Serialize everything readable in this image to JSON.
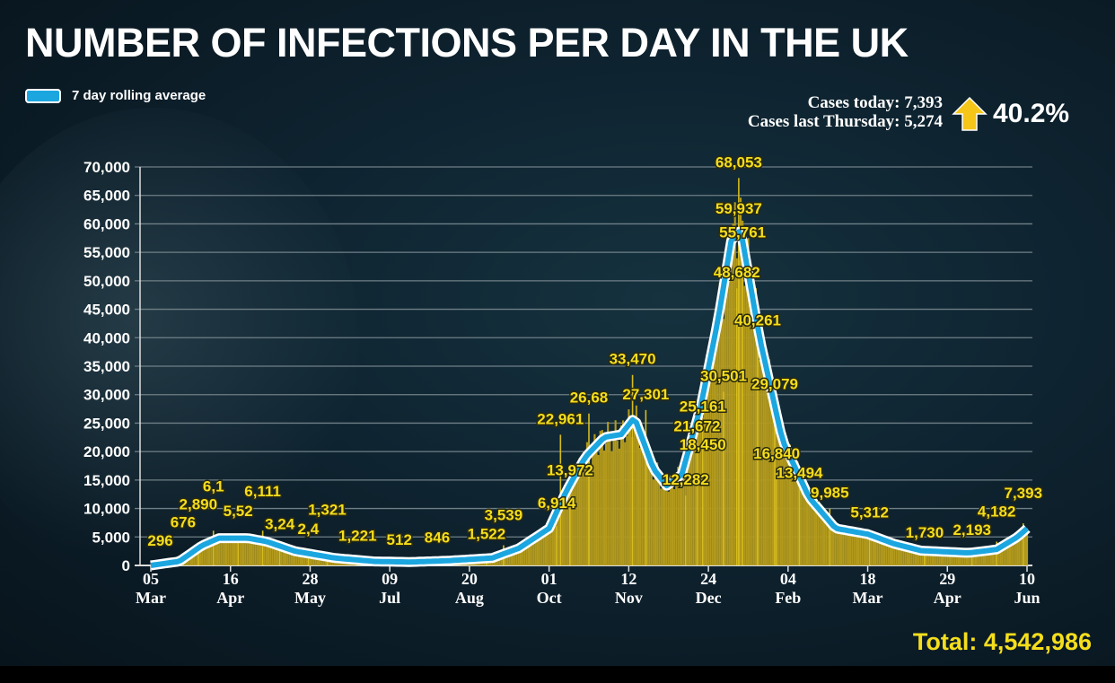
{
  "title": "NUMBER OF INFECTIONS PER DAY IN THE UK",
  "legend": {
    "label": "7 day rolling average",
    "color": "#1ba6e0"
  },
  "stats": {
    "cases_today": "Cases today: 7,393",
    "cases_last_thursday": "Cases last  Thursday: 5,274",
    "change": "40.2%",
    "change_icon": "up-arrow-icon",
    "arrow_color": "#f5c518"
  },
  "total": "Total: 4,542,986",
  "chart_data": {
    "type": "bar",
    "title": "NUMBER OF INFECTIONS PER DAY IN THE UK",
    "xlabel": "",
    "ylabel": "",
    "ylim": [
      0,
      70000
    ],
    "xlim": [
      "2020-03-05",
      "2021-06-10"
    ],
    "grid": true,
    "legend_position": "top-left",
    "colors": {
      "bars": "#b39a1c",
      "line": "#1ba6e0",
      "labels": "#f5de1c"
    },
    "y_ticks": [
      "0",
      "5,000",
      "10,000",
      "15,000",
      "20,000",
      "25,000",
      "30,000",
      "35,000",
      "40,000",
      "45,000",
      "50,000",
      "55,000",
      "60,000",
      "65,000",
      "70,000"
    ],
    "x_ticks": [
      {
        "date": "2020-03-05",
        "day": "05",
        "month": "Mar"
      },
      {
        "date": "2020-04-16",
        "day": "16",
        "month": "Apr"
      },
      {
        "date": "2020-05-28",
        "day": "28",
        "month": "May"
      },
      {
        "date": "2020-07-09",
        "day": "09",
        "month": "Jul"
      },
      {
        "date": "2020-08-20",
        "day": "20",
        "month": "Aug"
      },
      {
        "date": "2020-10-01",
        "day": "01",
        "month": "Oct"
      },
      {
        "date": "2020-11-12",
        "day": "12",
        "month": "Nov"
      },
      {
        "date": "2020-12-24",
        "day": "24",
        "month": "Dec"
      },
      {
        "date": "2021-02-04",
        "day": "04",
        "month": "Feb"
      },
      {
        "date": "2021-03-18",
        "day": "18",
        "month": "Mar"
      },
      {
        "date": "2021-04-29",
        "day": "29",
        "month": "Apr"
      },
      {
        "date": "2021-06-10",
        "day": "10",
        "month": "Jun"
      }
    ],
    "series": [
      {
        "name": "7 day rolling average",
        "type": "line",
        "points": [
          [
            "2020-03-05",
            0
          ],
          [
            "2020-03-20",
            700
          ],
          [
            "2020-04-01",
            3500
          ],
          [
            "2020-04-10",
            4800
          ],
          [
            "2020-04-25",
            4800
          ],
          [
            "2020-05-05",
            4200
          ],
          [
            "2020-05-20",
            2500
          ],
          [
            "2020-06-10",
            1300
          ],
          [
            "2020-07-01",
            700
          ],
          [
            "2020-07-20",
            600
          ],
          [
            "2020-08-10",
            850
          ],
          [
            "2020-09-01",
            1300
          ],
          [
            "2020-09-15",
            3000
          ],
          [
            "2020-10-01",
            6500
          ],
          [
            "2020-10-10",
            13000
          ],
          [
            "2020-10-20",
            19000
          ],
          [
            "2020-10-30",
            22500
          ],
          [
            "2020-11-08",
            23000
          ],
          [
            "2020-11-15",
            26000
          ],
          [
            "2020-11-25",
            17000
          ],
          [
            "2020-12-02",
            14000
          ],
          [
            "2020-12-10",
            16000
          ],
          [
            "2020-12-20",
            28000
          ],
          [
            "2020-12-29",
            43000
          ],
          [
            "2021-01-05",
            57000
          ],
          [
            "2021-01-10",
            59000
          ],
          [
            "2021-01-20",
            40000
          ],
          [
            "2021-02-01",
            22000
          ],
          [
            "2021-02-15",
            12000
          ],
          [
            "2021-03-01",
            6500
          ],
          [
            "2021-03-18",
            5500
          ],
          [
            "2021-04-01",
            3800
          ],
          [
            "2021-04-15",
            2600
          ],
          [
            "2021-05-10",
            2200
          ],
          [
            "2021-05-25",
            2800
          ],
          [
            "2021-06-05",
            5000
          ],
          [
            "2021-06-10",
            6500
          ]
        ]
      }
    ],
    "annotations": [
      {
        "date": "2020-03-10",
        "label": "296",
        "value": 296
      },
      {
        "date": "2020-03-22",
        "label": "676",
        "value": 676
      },
      {
        "date": "2020-03-30",
        "label": "2,890",
        "value": 2890
      },
      {
        "date": "2020-04-07",
        "label": "6,1",
        "value": 6100
      },
      {
        "date": "2020-04-20",
        "label": "5,52",
        "value": 5526
      },
      {
        "date": "2020-05-03",
        "label": "6,111",
        "value": 6111
      },
      {
        "date": "2020-05-12",
        "label": "3,24",
        "value": 3242
      },
      {
        "date": "2020-05-27",
        "label": "2,4",
        "value": 2400
      },
      {
        "date": "2020-06-06",
        "label": "1,321",
        "value": 1321
      },
      {
        "date": "2020-06-22",
        "label": "1,221",
        "value": 1221
      },
      {
        "date": "2020-07-14",
        "label": "512",
        "value": 512
      },
      {
        "date": "2020-08-03",
        "label": "846",
        "value": 846
      },
      {
        "date": "2020-08-29",
        "label": "1,522",
        "value": 1522
      },
      {
        "date": "2020-09-07",
        "label": "3,539",
        "value": 3539
      },
      {
        "date": "2020-10-05",
        "label": "6,914",
        "value": 6914
      },
      {
        "date": "2020-10-12",
        "label": "13,972",
        "value": 13972
      },
      {
        "date": "2020-10-07",
        "label": "22,961",
        "value": 22961
      },
      {
        "date": "2020-10-22",
        "label": "26,68",
        "value": 26688
      },
      {
        "date": "2020-11-14",
        "label": "33,470",
        "value": 33470
      },
      {
        "date": "2020-11-21",
        "label": "27,301",
        "value": 27301
      },
      {
        "date": "2020-12-12",
        "label": "12,282",
        "value": 12282
      },
      {
        "date": "2020-12-21",
        "label": "18,450",
        "value": 18450
      },
      {
        "date": "2020-12-18",
        "label": "21,672",
        "value": 21672
      },
      {
        "date": "2020-12-21",
        "label": "25,161",
        "value": 25161
      },
      {
        "date": "2021-01-01",
        "label": "30,501",
        "value": 30501
      },
      {
        "date": "2021-01-09",
        "label": "68,053",
        "value": 68053
      },
      {
        "date": "2021-01-09",
        "label": "59,937",
        "value": 59937
      },
      {
        "date": "2021-01-11",
        "label": "55,761",
        "value": 55761
      },
      {
        "date": "2021-01-08",
        "label": "48,682",
        "value": 48682
      },
      {
        "date": "2021-01-19",
        "label": "40,261",
        "value": 40261
      },
      {
        "date": "2021-01-28",
        "label": "29,079",
        "value": 29079
      },
      {
        "date": "2021-01-29",
        "label": "16,840",
        "value": 16840
      },
      {
        "date": "2021-02-10",
        "label": "13,494",
        "value": 13494
      },
      {
        "date": "2021-02-26",
        "label": "9,985",
        "value": 9985
      },
      {
        "date": "2021-03-19",
        "label": "5,312",
        "value": 5312
      },
      {
        "date": "2021-04-17",
        "label": "1,730",
        "value": 1730
      },
      {
        "date": "2021-05-12",
        "label": "2,193",
        "value": 2193
      },
      {
        "date": "2021-05-25",
        "label": "4,182",
        "value": 4182
      },
      {
        "date": "2021-06-08",
        "label": "7,393",
        "value": 7393
      }
    ]
  }
}
